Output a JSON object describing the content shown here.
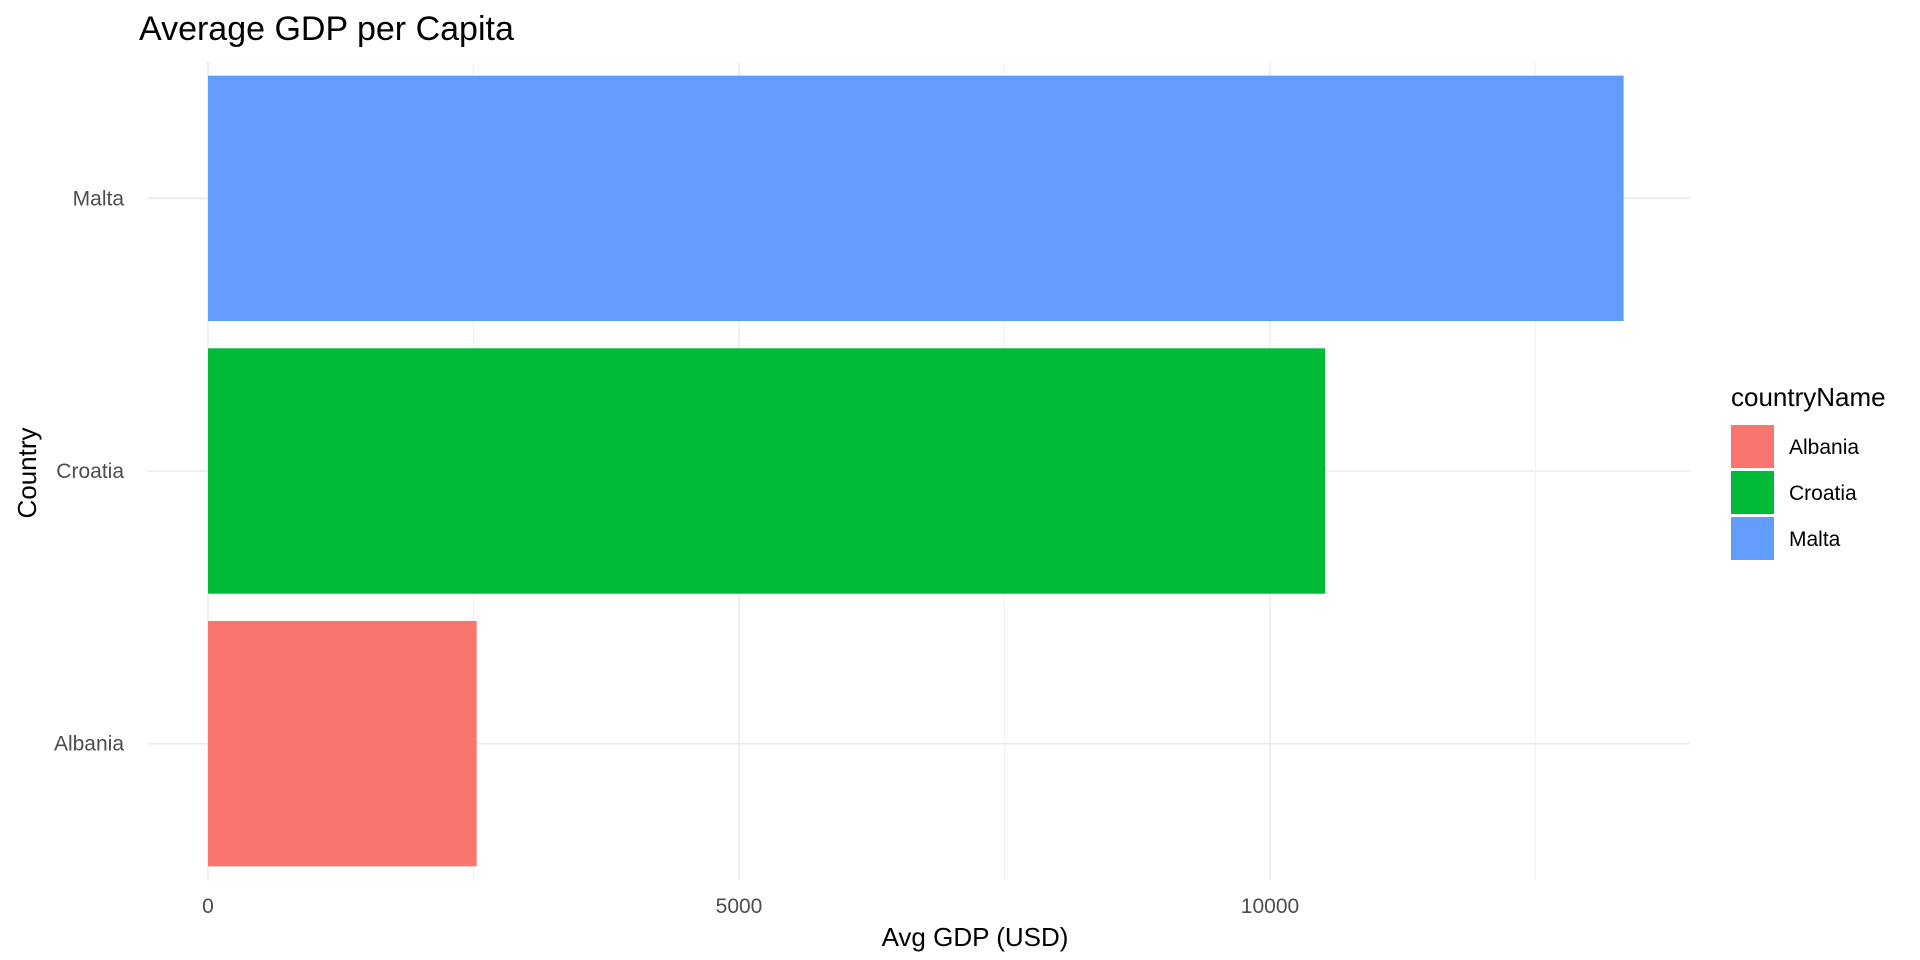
{
  "chart_data": {
    "type": "bar",
    "orientation": "horizontal",
    "title": "Average GDP per Capita",
    "xlabel": "Avg GDP (USD)",
    "ylabel": "Country",
    "categories": [
      "Albania",
      "Croatia",
      "Malta"
    ],
    "values": [
      2530,
      10520,
      13330
    ],
    "colors": [
      "#F8766D",
      "#00BA38",
      "#619CFF"
    ],
    "xlim": [
      0,
      14000
    ],
    "x_ticks": [
      0,
      5000,
      10000
    ],
    "x_tick_labels": [
      "0",
      "5000",
      "10000"
    ],
    "x_minor_ticks": [
      2500,
      7500,
      12500
    ],
    "grid": true,
    "legend": {
      "title": "countryName",
      "position": "right",
      "entries": [
        {
          "label": "Albania",
          "color": "#F8766D"
        },
        {
          "label": "Croatia",
          "color": "#00BA38"
        },
        {
          "label": "Malta",
          "color": "#619CFF"
        }
      ]
    }
  }
}
